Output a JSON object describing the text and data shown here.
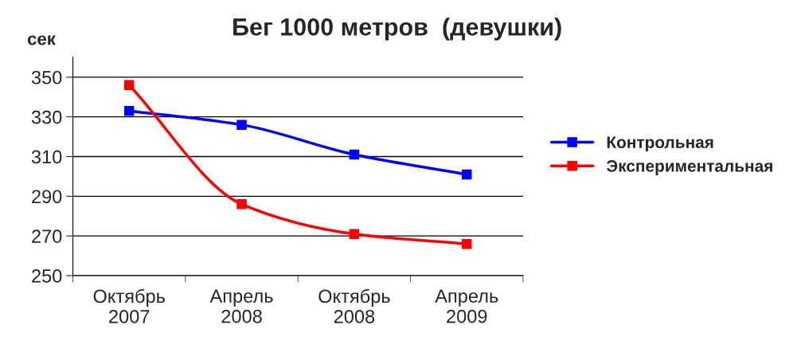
{
  "chart_data": {
    "type": "line",
    "title": "Бег 1000 метров  (девушки)",
    "ylabel": "сек",
    "categories": [
      "Октябрь\n2007",
      "Апрель\n2008",
      "Октябрь\n2008",
      "Апрель\n2009"
    ],
    "series": [
      {
        "name": "Контрольная",
        "color": "#0000ff",
        "values": [
          333,
          326,
          311,
          301
        ]
      },
      {
        "name": "Экспериментальная",
        "color": "#ff0000",
        "values": [
          346,
          286,
          271,
          266
        ]
      }
    ],
    "ylim": [
      250,
      360
    ],
    "yticks": [
      250,
      270,
      290,
      310,
      330,
      350
    ],
    "grid": "y",
    "legend": "right",
    "marker": "square",
    "line_style": "solid"
  }
}
